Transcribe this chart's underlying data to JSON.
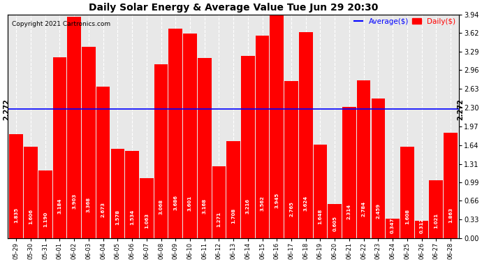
{
  "categories": [
    "05-29",
    "05-30",
    "05-31",
    "06-01",
    "06-02",
    "06-03",
    "06-04",
    "06-05",
    "06-06",
    "06-07",
    "06-08",
    "06-09",
    "06-10",
    "06-11",
    "06-12",
    "06-13",
    "06-14",
    "06-15",
    "06-16",
    "06-17",
    "06-18",
    "06-19",
    "06-20",
    "06-21",
    "06-22",
    "06-23",
    "06-24",
    "06-25",
    "06-26",
    "06-27",
    "06-28"
  ],
  "values": [
    1.835,
    1.606,
    1.19,
    3.184,
    3.903,
    3.368,
    2.673,
    1.578,
    1.534,
    1.063,
    3.068,
    3.686,
    3.601,
    3.168,
    1.271,
    1.708,
    3.216,
    3.562,
    3.945,
    2.765,
    3.624,
    1.648,
    0.605,
    2.314,
    2.784,
    2.459,
    0.347,
    1.608,
    0.312,
    1.021,
    1.863
  ],
  "bar_color": "#ff0000",
  "average_line": 2.272,
  "title": "Daily Solar Energy & Average Value Tue Jun 29 20:30",
  "copyright_text": "Copyright 2021 Cartronics.com",
  "legend_average": "Average($)",
  "legend_daily": "Daily($)",
  "average_color": "#0000ff",
  "daily_color": "#ff0000",
  "ylim": [
    0.0,
    3.94
  ],
  "yticks": [
    0.0,
    0.33,
    0.66,
    0.99,
    1.31,
    1.64,
    1.97,
    2.3,
    2.63,
    2.96,
    3.29,
    3.62,
    3.94
  ],
  "background_color": "#ffffff",
  "grid_color": "#bbbbbb",
  "avg_label": "2.272"
}
